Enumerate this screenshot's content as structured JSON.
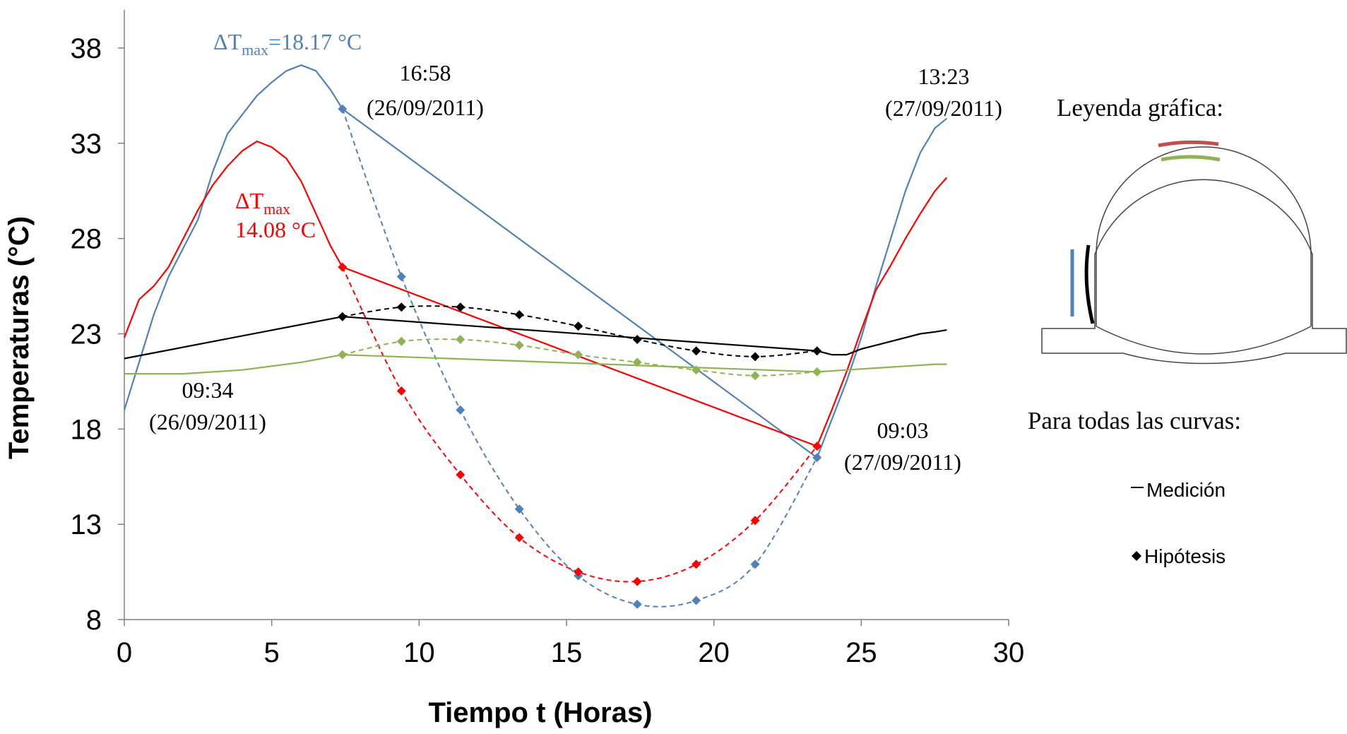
{
  "chart_data": {
    "type": "line",
    "xlabel": "Tiempo t (Horas)",
    "ylabel": "Temperaturas (°C)",
    "xlim": [
      0,
      30
    ],
    "ylim": [
      8,
      40
    ],
    "xticks": [
      0,
      5,
      10,
      15,
      20,
      25,
      30
    ],
    "yticks": [
      8,
      13,
      18,
      23,
      28,
      33,
      38
    ],
    "grid": false,
    "colors": {
      "blue": "#4f81bd",
      "red": "#ff0000",
      "black": "#000000",
      "green": "#8db352",
      "brown": "#c0504d"
    },
    "series": [
      {
        "color_key": "blue",
        "measured": [
          [
            0,
            19
          ],
          [
            0.5,
            21.5
          ],
          [
            1,
            24
          ],
          [
            1.5,
            26
          ],
          [
            2,
            27.5
          ],
          [
            2.5,
            29
          ],
          [
            3,
            31.5
          ],
          [
            3.5,
            33.5
          ],
          [
            4,
            34.5
          ],
          [
            4.5,
            35.5
          ],
          [
            5,
            36.2
          ],
          [
            5.5,
            36.8
          ],
          [
            6,
            37.1
          ],
          [
            6.5,
            36.8
          ],
          [
            7,
            35.8
          ],
          [
            7.4,
            34.8
          ],
          [
            23.5,
            16.5
          ],
          [
            24,
            18.5
          ],
          [
            24.5,
            20.5
          ],
          [
            25,
            22.8
          ],
          [
            25.5,
            25.5
          ],
          [
            26,
            28
          ],
          [
            26.5,
            30.5
          ],
          [
            27,
            32.5
          ],
          [
            27.5,
            33.8
          ],
          [
            27.9,
            34.3
          ]
        ],
        "hypothesis": [
          [
            7.4,
            34.8
          ],
          [
            9.4,
            26.0
          ],
          [
            11.4,
            19.0
          ],
          [
            13.4,
            13.8
          ],
          [
            15.4,
            10.3
          ],
          [
            17.4,
            8.8
          ],
          [
            19.4,
            9.0
          ],
          [
            21.4,
            10.9
          ],
          [
            23.5,
            16.5
          ]
        ]
      },
      {
        "color_key": "red",
        "measured": [
          [
            0,
            22.8
          ],
          [
            0.5,
            24.8
          ],
          [
            1,
            25.5
          ],
          [
            1.5,
            26.5
          ],
          [
            2,
            28
          ],
          [
            2.5,
            29.5
          ],
          [
            3,
            30.8
          ],
          [
            3.5,
            31.8
          ],
          [
            4,
            32.6
          ],
          [
            4.5,
            33.1
          ],
          [
            5,
            32.8
          ],
          [
            5.5,
            32.2
          ],
          [
            6,
            31
          ],
          [
            6.5,
            29.3
          ],
          [
            7,
            27.6
          ],
          [
            7.4,
            26.5
          ],
          [
            23.5,
            17.1
          ],
          [
            24,
            19
          ],
          [
            24.5,
            21
          ],
          [
            25,
            23.2
          ],
          [
            25.5,
            25.3
          ],
          [
            26,
            26.6
          ],
          [
            26.5,
            28
          ],
          [
            27,
            29.3
          ],
          [
            27.5,
            30.5
          ],
          [
            27.9,
            31.2
          ]
        ],
        "hypothesis": [
          [
            7.4,
            26.5
          ],
          [
            9.4,
            20.0
          ],
          [
            11.4,
            15.6
          ],
          [
            13.4,
            12.3
          ],
          [
            15.4,
            10.5
          ],
          [
            17.4,
            10.0
          ],
          [
            19.4,
            10.9
          ],
          [
            21.4,
            13.2
          ],
          [
            23.5,
            17.1
          ]
        ]
      },
      {
        "color_key": "black",
        "measured": [
          [
            0,
            21.7
          ],
          [
            7.4,
            23.9
          ],
          [
            23.5,
            22.1
          ],
          [
            24,
            21.9
          ],
          [
            24.5,
            21.9
          ],
          [
            25,
            22.2
          ],
          [
            25.5,
            22.4
          ],
          [
            26,
            22.6
          ],
          [
            26.5,
            22.8
          ],
          [
            27,
            23
          ],
          [
            27.5,
            23.1
          ],
          [
            27.9,
            23.2
          ]
        ],
        "hypothesis": [
          [
            7.4,
            23.9
          ],
          [
            9.4,
            24.4
          ],
          [
            11.4,
            24.4
          ],
          [
            13.4,
            24.0
          ],
          [
            15.4,
            23.4
          ],
          [
            17.4,
            22.7
          ],
          [
            19.4,
            22.1
          ],
          [
            21.4,
            21.8
          ],
          [
            23.5,
            22.1
          ]
        ]
      },
      {
        "color_key": "green",
        "measured": [
          [
            0,
            20.9
          ],
          [
            2,
            20.9
          ],
          [
            4,
            21.1
          ],
          [
            6,
            21.5
          ],
          [
            7.4,
            21.9
          ],
          [
            23.5,
            21.0
          ],
          [
            24.5,
            21.1
          ],
          [
            25.5,
            21.2
          ],
          [
            26.5,
            21.3
          ],
          [
            27.5,
            21.4
          ],
          [
            27.9,
            21.4
          ]
        ],
        "hypothesis": [
          [
            7.4,
            21.9
          ],
          [
            9.4,
            22.6
          ],
          [
            11.4,
            22.7
          ],
          [
            13.4,
            22.4
          ],
          [
            15.4,
            21.9
          ],
          [
            17.4,
            21.5
          ],
          [
            19.4,
            21.1
          ],
          [
            21.4,
            20.8
          ],
          [
            23.5,
            21.0
          ]
        ]
      }
    ],
    "annotations": [
      {
        "id": "dtmax-blue",
        "prefix": "ΔT",
        "sub": "max",
        "suffix": "=18.17 °C",
        "color_key": "blue"
      },
      {
        "id": "dtmax-red",
        "prefix": "ΔT",
        "sub": "max",
        "line2": "14.08 °C",
        "color_key": "red"
      },
      {
        "id": "time-1658",
        "line1": "16:58",
        "line2": "(26/09/2011)"
      },
      {
        "id": "time-1323",
        "line1": "13:23",
        "line2": "(27/09/2011)"
      },
      {
        "id": "time-0934",
        "line1": "09:34",
        "line2": "(26/09/2011)"
      },
      {
        "id": "time-0903",
        "line1": "09:03",
        "line2": "(27/09/2011)"
      }
    ]
  },
  "legend": {
    "title": "Leyenda gráfica:",
    "subtitle": "Para todas las curvas:",
    "measured_label": "Medición",
    "hypothesis_label": "Hipótesis"
  }
}
